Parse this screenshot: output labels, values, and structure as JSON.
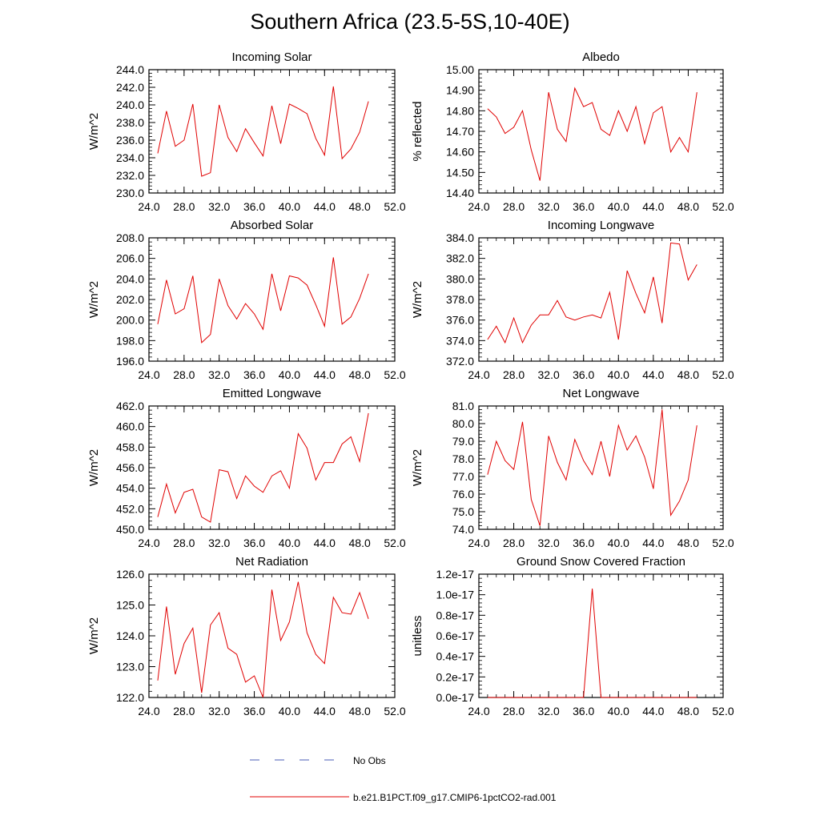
{
  "figure": {
    "title": "Southern Africa (23.5-5S,10-40E)"
  },
  "legend": {
    "entries": [
      {
        "label": "No Obs",
        "color": "#4a5bb5",
        "style": "dashed"
      },
      {
        "label": "b.e21.B1PCT.f09_g17.CMIP6-1pctCO2-rad.001",
        "color": "#e00000",
        "style": "solid"
      }
    ]
  },
  "chart_data": [
    {
      "type": "line",
      "title": "Incoming Solar",
      "ylabel": "W/m^2",
      "xlim": [
        24,
        52
      ],
      "ylim": [
        230,
        244
      ],
      "xticks": [
        24,
        28,
        32,
        36,
        40,
        44,
        48,
        52
      ],
      "xtick_labels": [
        "24.0",
        "28.0",
        "32.0",
        "36.0",
        "40.0",
        "44.0",
        "48.0",
        "52.0"
      ],
      "yticks": [
        230,
        232,
        234,
        236,
        238,
        240,
        242,
        244
      ],
      "ytick_labels": [
        "230.0",
        "232.0",
        "234.0",
        "236.0",
        "238.0",
        "240.0",
        "242.0",
        "244.0"
      ],
      "series": [
        {
          "color": "#e00000",
          "x": [
            25,
            26,
            27,
            28,
            29,
            30,
            31,
            32,
            33,
            34,
            35,
            36,
            37,
            38,
            39,
            40,
            41,
            42,
            43,
            44,
            45,
            46,
            47,
            48,
            49
          ],
          "y": [
            234.5,
            239.3,
            235.3,
            236.0,
            240.1,
            231.9,
            232.3,
            240.0,
            236.3,
            234.7,
            237.3,
            235.7,
            234.2,
            239.9,
            235.6,
            240.1,
            239.6,
            239.0,
            236.2,
            234.3,
            242.1,
            233.9,
            235.0,
            236.9,
            240.4
          ]
        }
      ]
    },
    {
      "type": "line",
      "title": "Albedo",
      "ylabel": "% reflected",
      "xlim": [
        24,
        52
      ],
      "ylim": [
        14.4,
        15.0
      ],
      "xticks": [
        24,
        28,
        32,
        36,
        40,
        44,
        48,
        52
      ],
      "xtick_labels": [
        "24.0",
        "28.0",
        "32.0",
        "36.0",
        "40.0",
        "44.0",
        "48.0",
        "52.0"
      ],
      "yticks": [
        14.4,
        14.5,
        14.6,
        14.7,
        14.8,
        14.9,
        15.0
      ],
      "ytick_labels": [
        "14.40",
        "14.50",
        "14.60",
        "14.70",
        "14.80",
        "14.90",
        "15.00"
      ],
      "series": [
        {
          "color": "#e00000",
          "x": [
            25,
            26,
            27,
            28,
            29,
            30,
            31,
            32,
            33,
            34,
            35,
            36,
            37,
            38,
            39,
            40,
            41,
            42,
            43,
            44,
            45,
            46,
            47,
            48,
            49
          ],
          "y": [
            14.81,
            14.77,
            14.69,
            14.72,
            14.8,
            14.61,
            14.46,
            14.89,
            14.71,
            14.65,
            14.91,
            14.82,
            14.84,
            14.71,
            14.68,
            14.8,
            14.7,
            14.82,
            14.64,
            14.79,
            14.82,
            14.6,
            14.67,
            14.6,
            14.89
          ]
        }
      ]
    },
    {
      "type": "line",
      "title": "Absorbed Solar",
      "ylabel": "W/m^2",
      "xlim": [
        24,
        52
      ],
      "ylim": [
        196,
        208
      ],
      "xticks": [
        24,
        28,
        32,
        36,
        40,
        44,
        48,
        52
      ],
      "xtick_labels": [
        "24.0",
        "28.0",
        "32.0",
        "36.0",
        "40.0",
        "44.0",
        "48.0",
        "52.0"
      ],
      "yticks": [
        196,
        198,
        200,
        202,
        204,
        206,
        208
      ],
      "ytick_labels": [
        "196.0",
        "198.0",
        "200.0",
        "202.0",
        "204.0",
        "206.0",
        "208.0"
      ],
      "series": [
        {
          "color": "#e00000",
          "x": [
            25,
            26,
            27,
            28,
            29,
            30,
            31,
            32,
            33,
            34,
            35,
            36,
            37,
            38,
            39,
            40,
            41,
            42,
            43,
            44,
            45,
            46,
            47,
            48,
            49
          ],
          "y": [
            199.6,
            203.9,
            200.6,
            201.1,
            204.3,
            197.8,
            198.6,
            204.0,
            201.4,
            200.1,
            201.6,
            200.6,
            199.1,
            204.5,
            200.9,
            204.3,
            204.1,
            203.4,
            201.5,
            199.4,
            206.1,
            199.6,
            200.3,
            202.1,
            204.5
          ]
        }
      ]
    },
    {
      "type": "line",
      "title": "Incoming Longwave",
      "ylabel": "W/m^2",
      "xlim": [
        24,
        52
      ],
      "ylim": [
        372,
        384
      ],
      "xticks": [
        24,
        28,
        32,
        36,
        40,
        44,
        48,
        52
      ],
      "xtick_labels": [
        "24.0",
        "28.0",
        "32.0",
        "36.0",
        "40.0",
        "44.0",
        "48.0",
        "52.0"
      ],
      "yticks": [
        372,
        374,
        376,
        378,
        380,
        382,
        384
      ],
      "ytick_labels": [
        "372.0",
        "374.0",
        "376.0",
        "378.0",
        "380.0",
        "382.0",
        "384.0"
      ],
      "series": [
        {
          "color": "#e00000",
          "x": [
            25,
            26,
            27,
            28,
            29,
            30,
            31,
            32,
            33,
            34,
            35,
            36,
            37,
            38,
            39,
            40,
            41,
            42,
            43,
            44,
            45,
            46,
            47,
            48,
            49
          ],
          "y": [
            374.1,
            375.4,
            373.8,
            376.2,
            373.8,
            375.5,
            376.5,
            376.5,
            377.9,
            376.3,
            376.0,
            376.3,
            376.5,
            376.2,
            378.7,
            374.1,
            380.8,
            378.6,
            376.7,
            380.2,
            375.7,
            383.5,
            383.4,
            379.9,
            381.4
          ]
        }
      ]
    },
    {
      "type": "line",
      "title": "Emitted Longwave",
      "ylabel": "W/m^2",
      "xlim": [
        24,
        52
      ],
      "ylim": [
        450,
        462
      ],
      "xticks": [
        24,
        28,
        32,
        36,
        40,
        44,
        48,
        52
      ],
      "xtick_labels": [
        "24.0",
        "28.0",
        "32.0",
        "36.0",
        "40.0",
        "44.0",
        "48.0",
        "52.0"
      ],
      "yticks": [
        450,
        452,
        454,
        456,
        458,
        460,
        462
      ],
      "ytick_labels": [
        "450.0",
        "452.0",
        "454.0",
        "456.0",
        "458.0",
        "460.0",
        "462.0"
      ],
      "series": [
        {
          "color": "#e00000",
          "x": [
            25,
            26,
            27,
            28,
            29,
            30,
            31,
            32,
            33,
            34,
            35,
            36,
            37,
            38,
            39,
            40,
            41,
            42,
            43,
            44,
            45,
            46,
            47,
            48,
            49
          ],
          "y": [
            451.2,
            454.4,
            451.6,
            453.6,
            453.9,
            451.2,
            450.7,
            455.8,
            455.6,
            453.0,
            455.2,
            454.2,
            453.6,
            455.2,
            455.7,
            454.0,
            459.3,
            457.9,
            454.8,
            456.5,
            456.5,
            458.3,
            459.0,
            456.6,
            461.3
          ]
        }
      ]
    },
    {
      "type": "line",
      "title": "Net Longwave",
      "ylabel": "W/m^2",
      "xlim": [
        24,
        52
      ],
      "ylim": [
        74,
        81
      ],
      "xticks": [
        24,
        28,
        32,
        36,
        40,
        44,
        48,
        52
      ],
      "xtick_labels": [
        "24.0",
        "28.0",
        "32.0",
        "36.0",
        "40.0",
        "44.0",
        "48.0",
        "52.0"
      ],
      "yticks": [
        74,
        75,
        76,
        77,
        78,
        79,
        80,
        81
      ],
      "ytick_labels": [
        "74.0",
        "75.0",
        "76.0",
        "77.0",
        "78.0",
        "79.0",
        "80.0",
        "81.0"
      ],
      "series": [
        {
          "color": "#e00000",
          "x": [
            25,
            26,
            27,
            28,
            29,
            30,
            31,
            32,
            33,
            34,
            35,
            36,
            37,
            38,
            39,
            40,
            41,
            42,
            43,
            44,
            45,
            46,
            47,
            48,
            49
          ],
          "y": [
            77.1,
            79.0,
            77.9,
            77.4,
            80.1,
            75.7,
            74.2,
            79.3,
            77.8,
            76.8,
            79.1,
            77.9,
            77.1,
            79.0,
            77.0,
            79.9,
            78.5,
            79.3,
            78.1,
            76.3,
            80.8,
            74.8,
            75.6,
            76.8,
            79.9
          ]
        }
      ]
    },
    {
      "type": "line",
      "title": "Net Radiation",
      "ylabel": "W/m^2",
      "xlim": [
        24,
        52
      ],
      "ylim": [
        122,
        126
      ],
      "xticks": [
        24,
        28,
        32,
        36,
        40,
        44,
        48,
        52
      ],
      "xtick_labels": [
        "24.0",
        "28.0",
        "32.0",
        "36.0",
        "40.0",
        "44.0",
        "48.0",
        "52.0"
      ],
      "yticks": [
        122,
        123,
        124,
        125,
        126
      ],
      "ytick_labels": [
        "122.0",
        "123.0",
        "124.0",
        "125.0",
        "126.0"
      ],
      "series": [
        {
          "color": "#e00000",
          "x": [
            25,
            26,
            27,
            28,
            29,
            30,
            31,
            32,
            33,
            34,
            35,
            36,
            37,
            38,
            39,
            40,
            41,
            42,
            43,
            44,
            45,
            46,
            47,
            48,
            49
          ],
          "y": [
            122.55,
            124.95,
            122.75,
            123.75,
            124.25,
            122.15,
            124.35,
            124.75,
            123.6,
            123.4,
            122.5,
            122.7,
            122.0,
            125.5,
            123.85,
            124.45,
            125.75,
            124.1,
            123.4,
            123.1,
            125.25,
            124.75,
            124.7,
            125.4,
            124.55
          ]
        }
      ]
    },
    {
      "type": "line",
      "title": "Ground Snow Covered Fraction",
      "ylabel": "unitless",
      "xlim": [
        24,
        52
      ],
      "ylim": [
        0,
        1.2e-17
      ],
      "xticks": [
        24,
        28,
        32,
        36,
        40,
        44,
        48,
        52
      ],
      "xtick_labels": [
        "24.0",
        "28.0",
        "32.0",
        "36.0",
        "40.0",
        "44.0",
        "48.0",
        "52.0"
      ],
      "yticks": [
        0,
        2e-18,
        4e-18,
        6e-18,
        8e-18,
        1e-17,
        1.2e-17
      ],
      "ytick_labels": [
        "0.0e-17",
        "0.2e-17",
        "0.4e-17",
        "0.6e-17",
        "0.8e-17",
        "1.0e-17",
        "1.2e-17"
      ],
      "series": [
        {
          "color": "#e00000",
          "x": [
            25,
            26,
            27,
            28,
            29,
            30,
            31,
            32,
            33,
            34,
            35,
            36,
            37,
            38,
            39,
            40,
            41,
            42,
            43,
            44,
            45,
            46,
            47,
            48,
            49
          ],
          "y": [
            0,
            0,
            0,
            0,
            0,
            0,
            0,
            0,
            0,
            0,
            0,
            0,
            1.06e-17,
            0,
            0,
            0,
            0,
            0,
            0,
            0,
            0,
            0,
            0,
            0,
            0
          ]
        }
      ]
    }
  ]
}
